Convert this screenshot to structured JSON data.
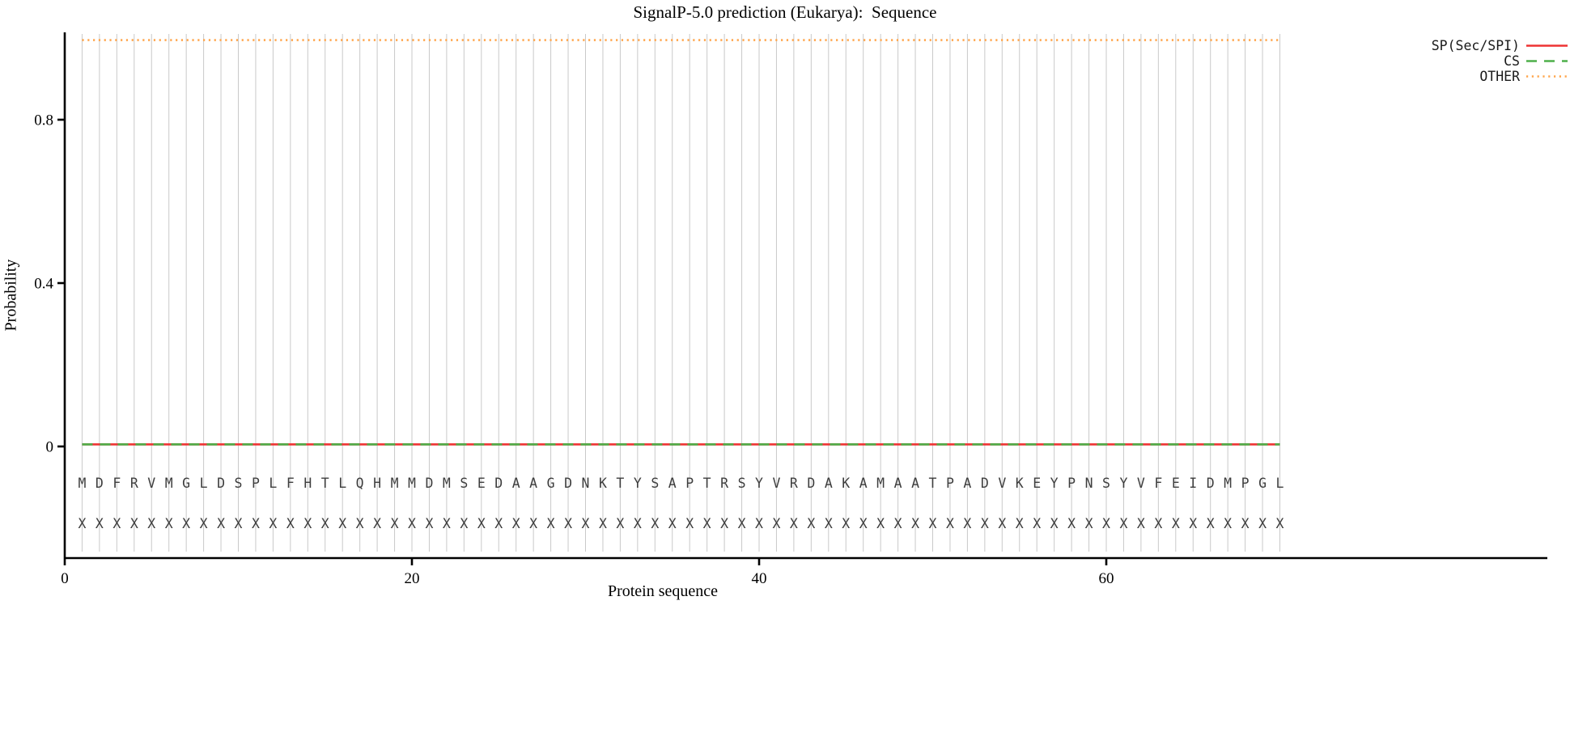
{
  "title": "SignalP-5.0 prediction (Eukarya):  Sequence",
  "chart_data": {
    "type": "line",
    "title": "SignalP-5.0 prediction (Eukarya):  Sequence",
    "xlabel": "Protein sequence",
    "ylabel": "Probability",
    "xlim": [
      0,
      73.5
    ],
    "ylim": [
      0,
      1.04
    ],
    "x_ticks": [
      {
        "value": 0,
        "label": "0"
      },
      {
        "value": 20,
        "label": "20"
      },
      {
        "value": 40,
        "label": "40"
      },
      {
        "value": 60,
        "label": "60"
      }
    ],
    "y_ticks": [
      {
        "value": 0,
        "label": "0"
      },
      {
        "value": 0.4,
        "label": "0.4"
      },
      {
        "value": 0.8,
        "label": "0.8"
      }
    ],
    "grid": "vertical-line-per-residue",
    "legend_position": "top-right",
    "sequence": "MDFRVMGLDSPLFHTLQHMMDMSEDAAGDNKTYSAPTRSYVRDAKAMAATPADVKEYPNSYVFEIDMPGL",
    "sequence_length": 70,
    "per_residue_mark": "X",
    "series": [
      {
        "name": "SP(Sec/SPI)",
        "style": "solid",
        "color": "#ee3333",
        "constant_value": 0.005
      },
      {
        "name": "CS",
        "style": "dashed",
        "color": "#4daf4a",
        "constant_value": 0.005
      },
      {
        "name": "OTHER",
        "style": "dotted",
        "color": "#ffa64d",
        "constant_value": 0.995
      }
    ],
    "colors": {
      "grid": "#c9c9c9",
      "axis": "#000000",
      "sequence_text": "#3d3d3d",
      "legend_text": "#1a1a1a"
    }
  }
}
